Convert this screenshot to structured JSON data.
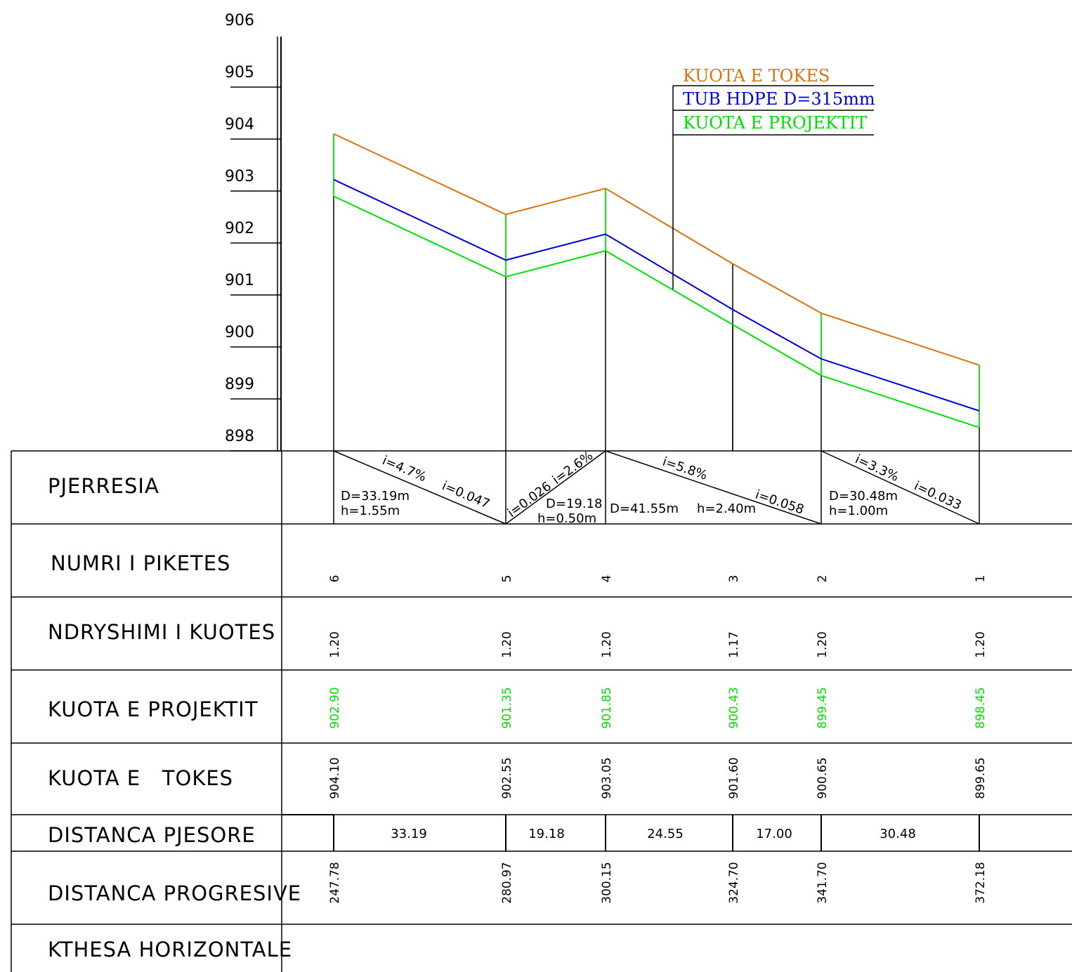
{
  "colors": {
    "ground": "#d9720f",
    "pipe": "#0000e0",
    "project": "#00e000",
    "ink": "#000000"
  },
  "legend": {
    "ground_label": "KUOTA E TOKES",
    "pipe_label": "TUB HDPE D=315mm",
    "project_label": "KUOTA E PROJEKTIT"
  },
  "chart_data": {
    "type": "line",
    "y_ticks": [
      "906",
      "905",
      "904",
      "903",
      "902",
      "901",
      "900",
      "899",
      "898"
    ],
    "ylim": [
      898,
      906
    ],
    "series": [
      {
        "name": "KUOTA E TOKES",
        "x": [
          247.78,
          280.97,
          300.15,
          324.7,
          341.7,
          372.18
        ],
        "values": [
          904.1,
          902.55,
          903.05,
          901.6,
          900.65,
          899.65
        ]
      },
      {
        "name": "TUB HDPE D=315mm",
        "x": [
          247.78,
          280.97,
          300.15,
          324.7,
          341.7,
          372.18
        ],
        "values": [
          903.22,
          901.67,
          902.17,
          900.72,
          899.77,
          898.77
        ]
      },
      {
        "name": "KUOTA E PROJEKTIT",
        "x": [
          247.78,
          280.97,
          300.15,
          324.7,
          341.7,
          372.18
        ],
        "values": [
          902.9,
          901.35,
          901.85,
          900.43,
          899.45,
          898.45
        ]
      }
    ]
  },
  "table": {
    "row_labels": {
      "slope": "PJERRESIA",
      "station": "NUMRI I PIKETES",
      "diff": "NDRYSHIMI I KUOTES",
      "project": "KUOTA E PROJEKTIT",
      "ground": "KUOTA E   TOKES",
      "partial": "DISTANCA PJESORE",
      "progressive": "DISTANCA PROGRESIVE",
      "curve": "KTHESA HORIZONTALE"
    },
    "stations": [
      "6",
      "5",
      "4",
      "3",
      "2",
      "1"
    ],
    "diffs": [
      "1.20",
      "1.20",
      "1.20",
      "1.17",
      "1.20",
      "1.20"
    ],
    "project_elev": [
      "902.90",
      "901.35",
      "901.85",
      "900.43",
      "899.45",
      "898.45"
    ],
    "ground_elev": [
      "904.10",
      "902.55",
      "903.05",
      "901.60",
      "900.65",
      "899.65"
    ],
    "partial": [
      "33.19",
      "19.18",
      "24.55",
      "17.00",
      "30.48"
    ],
    "progressive": [
      "247.78",
      "280.97",
      "300.15",
      "324.70",
      "341.70",
      "372.18"
    ]
  },
  "slopes": [
    {
      "pct": "i=4.7%",
      "frac": "i=0.047",
      "D": "D=33.19m",
      "h": "h=1.55m"
    },
    {
      "pct": "i=2.6%",
      "frac": "i=0.026",
      "D": "D=19.18",
      "h": "h=0.50m"
    },
    {
      "pct": "i=5.8%",
      "frac": "i=0.058",
      "D": "D=41.55m",
      "h": "h=2.40m"
    },
    {
      "pct": "i=3.3%",
      "frac": "i=0.033",
      "D": "D=30.48m",
      "h": "h=1.00m"
    }
  ]
}
